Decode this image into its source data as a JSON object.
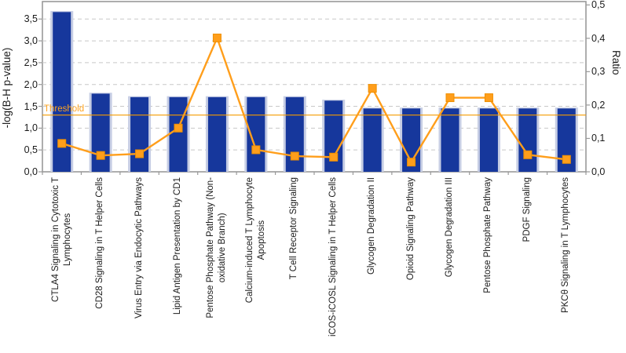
{
  "chart_data": {
    "type": "bar",
    "subtype": "bar-with-line-overlay",
    "title": "",
    "categories": [
      "CTLA4 Signaling in Cytotoxic T\nLymphocytes",
      "CD28 Signaling in T Helper Cells",
      "Virus Entry via Endocytic Pathways",
      "Lipid Antigen Presentation by CD1",
      "Pentose Phosphate Pathway (Non-\noxidative Branch)",
      "Calcium-induced T Lymphocyte\nApoptosis",
      "T Cell Receptor Signaling",
      "iCOS-iCOSL Signaling in T Helper Cells",
      "Glycogen Degradation II",
      "Opioid Signaling Pathway",
      "Glycogen Degradation III",
      "Pentose Phosphate Pathway",
      "PDGF Signaling",
      "PKCθ Signaling in T Lymphocytes"
    ],
    "series": [
      {
        "name": "-log(B-H p-value)",
        "type": "bar",
        "axis": "left",
        "color": "#16379c",
        "values": [
          3.66,
          1.79,
          1.71,
          1.71,
          1.71,
          1.71,
          1.71,
          1.63,
          1.45,
          1.45,
          1.45,
          1.45,
          1.45,
          1.45
        ]
      },
      {
        "name": "Ratio",
        "type": "line",
        "axis": "right",
        "color": "#ff9e1b",
        "values": [
          0.085,
          0.049,
          0.054,
          0.131,
          0.401,
          0.066,
          0.047,
          0.044,
          0.25,
          0.029,
          0.222,
          0.222,
          0.051,
          0.037
        ]
      }
    ],
    "left_axis": {
      "label": "-log(B-H p-value)",
      "min": 0,
      "max": 3.9,
      "tick_values": [
        0,
        0.5,
        1.0,
        1.5,
        2.0,
        2.5,
        3.0,
        3.5
      ],
      "tick_labels": [
        "0,0",
        "0,5",
        "1,0",
        "1,5",
        "2,0",
        "2,5",
        "3,0",
        "3,5"
      ]
    },
    "right_axis": {
      "label": "Ratio",
      "min": 0,
      "max": 0.51,
      "tick_values": [
        0,
        0.1,
        0.2,
        0.3,
        0.4,
        0.5
      ],
      "tick_labels": [
        "0,0",
        "0,1",
        "0,2",
        "0,3",
        "0,4",
        "0,5"
      ]
    },
    "threshold": {
      "label": "Threshold",
      "value": 1.3,
      "color": "#f59b00"
    },
    "grid": {
      "horizontal": "dashed",
      "at_left_ticks": true,
      "color": "#c8c8c8"
    },
    "legend_position": "none"
  },
  "colors": {
    "bar_fill": "#16379c",
    "bar_outline": "#c6cde4",
    "line_orange": "#ff9e1b",
    "marker_border": "#ef8f00",
    "threshold_line": "#f59b00",
    "plot_border": "#999999",
    "gridline": "#c8c8c8",
    "text": "#1a1a1a"
  }
}
